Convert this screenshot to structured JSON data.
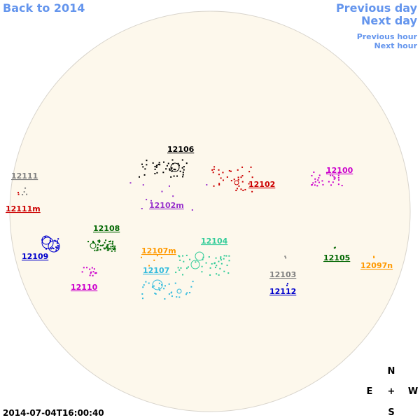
{
  "nav": {
    "back": "Back to 2014",
    "previous_day": "Previous day",
    "next_day": "Next day",
    "previous_hour": "Previous hour",
    "next_hour": "Next hour"
  },
  "regions": [
    {
      "label": "12106",
      "color": "#000000"
    },
    {
      "label": "12111",
      "color": "#808080"
    },
    {
      "label": "12111m",
      "color": "#cc0000"
    },
    {
      "label": "12100",
      "color": "#cc00cc"
    },
    {
      "label": "12102",
      "color": "#cc0000"
    },
    {
      "label": "12102m",
      "color": "#9933cc"
    },
    {
      "label": "12108",
      "color": "#006600"
    },
    {
      "label": "12104",
      "color": "#33cc99"
    },
    {
      "label": "12107m",
      "color": "#ff9900"
    },
    {
      "label": "12109",
      "color": "#0000cc"
    },
    {
      "label": "12105",
      "color": "#006600"
    },
    {
      "label": "12097n",
      "color": "#ff9900"
    },
    {
      "label": "12107",
      "color": "#33bbdd"
    },
    {
      "label": "12103",
      "color": "#808080"
    },
    {
      "label": "12110",
      "color": "#cc00cc"
    },
    {
      "label": "12112",
      "color": "#0000cc"
    }
  ],
  "compass": {
    "north": "N",
    "east": "E",
    "center": "+",
    "west": "W",
    "south": "S"
  },
  "timestamp": "2014-07-04T16:00:40"
}
